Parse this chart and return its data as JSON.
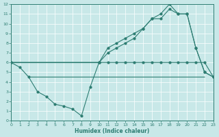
{
  "line_upper_x": [
    0,
    10,
    11,
    12,
    13,
    14,
    15,
    16,
    17,
    18,
    19,
    20,
    21,
    22,
    23
  ],
  "line_upper_y": [
    6,
    6,
    7.5,
    8,
    8.5,
    9,
    9.5,
    10.5,
    11,
    12,
    11,
    11,
    7.5,
    5,
    4.5
  ],
  "line_mid_x": [
    0,
    10,
    11,
    12,
    13,
    14,
    15,
    16,
    17,
    18,
    19,
    20,
    21,
    22,
    23
  ],
  "line_mid_y": [
    6,
    6,
    7,
    7.5,
    8,
    8.5,
    9.5,
    10.5,
    10.5,
    11.5,
    11,
    11,
    7.5,
    5,
    4.5
  ],
  "line_lower_x": [
    0,
    1,
    2,
    3,
    4,
    5,
    6,
    7,
    8,
    9,
    10,
    11,
    12,
    13,
    14,
    15,
    16,
    17,
    18,
    19,
    20,
    21,
    22,
    23
  ],
  "line_lower_y": [
    6,
    5.5,
    4.5,
    3,
    2.5,
    1.7,
    1.5,
    1.2,
    0.5,
    3.5,
    6,
    6,
    6,
    6,
    6,
    6,
    6,
    6,
    6,
    6,
    6,
    6,
    6,
    4.5
  ],
  "hline_upper_y": 6,
  "hline_upper_x0": 0,
  "hline_upper_x1": 10,
  "hline_lower_y": 4.5,
  "hline_lower_x0": 2,
  "hline_lower_x1": 22,
  "xlim": [
    0,
    23
  ],
  "ylim": [
    0,
    12
  ],
  "xticks": [
    0,
    1,
    2,
    3,
    4,
    5,
    6,
    7,
    8,
    9,
    10,
    11,
    12,
    13,
    14,
    15,
    16,
    17,
    18,
    19,
    20,
    21,
    22,
    23
  ],
  "yticks": [
    0,
    1,
    2,
    3,
    4,
    5,
    6,
    7,
    8,
    9,
    10,
    11,
    12
  ],
  "xlabel": "Humidex (Indice chaleur)",
  "line_color": "#2d7d72",
  "bg_color": "#c8e8e8",
  "grid_color": "#b8d8d8",
  "axis_color": "#2d7d72"
}
